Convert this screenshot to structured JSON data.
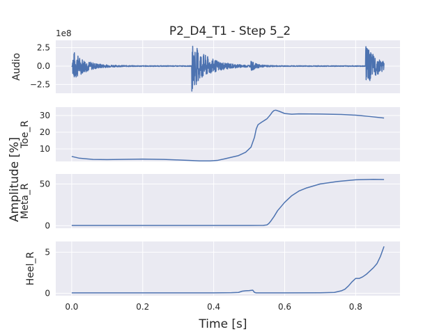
{
  "chart_data": {
    "type": "line",
    "title": "P2_D4_T1 - Step 5_2",
    "xlabel": "Time [s]",
    "ylabel": "Amplitude [%]",
    "xlim": [
      -0.045,
      0.925
    ],
    "x_ticks": [
      0.0,
      0.2,
      0.4,
      0.6,
      0.8
    ],
    "x_tick_labels": [
      "0.0",
      "0.2",
      "0.4",
      "0.6",
      "0.8"
    ],
    "grid": true,
    "color": "#4c72b0",
    "panels": [
      {
        "ylabel": "Audio",
        "offset_label": "1e8",
        "ylim": [
          -3.7,
          3.5
        ],
        "y_ticks": [
          2.5,
          0.0,
          -2.5
        ],
        "y_tick_labels": [
          "2.5",
          "0.0",
          "−2.5"
        ],
        "bursts": [
          {
            "t": 0.002,
            "peak": 1.3,
            "trough": -2.2,
            "decay": 0.035
          },
          {
            "t": 0.338,
            "peak": 3.2,
            "trough": -3.4,
            "decay": 0.045
          },
          {
            "t": 0.505,
            "peak": 0.6,
            "trough": -0.6,
            "decay": 0.015
          },
          {
            "t": 0.828,
            "peak": 1.7,
            "trough": -2.8,
            "decay": 0.035
          }
        ],
        "noise_level": 0.05,
        "x": [
          0.0,
          0.88
        ]
      },
      {
        "ylabel": "Toe_R",
        "ylim": [
          2.5,
          35
        ],
        "y_ticks": [
          10,
          20,
          30
        ],
        "y_tick_labels": [
          "10",
          "20",
          "30"
        ],
        "x": [
          0.0,
          0.02,
          0.06,
          0.1,
          0.2,
          0.26,
          0.3,
          0.33,
          0.36,
          0.39,
          0.41,
          0.43,
          0.45,
          0.47,
          0.49,
          0.505,
          0.515,
          0.52,
          0.525,
          0.535,
          0.55,
          0.56,
          0.565,
          0.57,
          0.575,
          0.585,
          0.6,
          0.62,
          0.64,
          0.7,
          0.76,
          0.8,
          0.84,
          0.88
        ],
        "y": [
          5.5,
          4.5,
          3.7,
          3.6,
          3.9,
          3.7,
          3.4,
          3.1,
          2.8,
          2.8,
          3.1,
          4.0,
          5.0,
          6.0,
          8.0,
          11.0,
          17.0,
          22.0,
          24.5,
          26.0,
          28.0,
          30.5,
          32.0,
          33.0,
          33.2,
          32.5,
          31.2,
          30.8,
          31.0,
          30.9,
          30.6,
          30.2,
          29.4,
          28.5
        ]
      },
      {
        "ylabel": "Meta_R",
        "ylim": [
          -3,
          62
        ],
        "y_ticks": [
          0,
          50
        ],
        "y_tick_labels": [
          "0",
          "50"
        ],
        "x": [
          0.0,
          0.1,
          0.2,
          0.3,
          0.4,
          0.5,
          0.54,
          0.55,
          0.555,
          0.56,
          0.57,
          0.58,
          0.6,
          0.62,
          0.64,
          0.66,
          0.7,
          0.75,
          0.8,
          0.85,
          0.88
        ],
        "y": [
          0.3,
          0.3,
          0.3,
          0.3,
          0.3,
          0.3,
          0.4,
          1.0,
          2.5,
          5.0,
          11.0,
          18.0,
          28.0,
          36.0,
          41.5,
          45.0,
          50.0,
          53.0,
          55.0,
          55.5,
          55.3
        ]
      },
      {
        "ylabel": "Heel_R",
        "ylim": [
          -0.3,
          6.3
        ],
        "y_ticks": [
          0,
          5
        ],
        "y_tick_labels": [
          "0",
          "5"
        ],
        "x": [
          0.0,
          0.1,
          0.2,
          0.3,
          0.4,
          0.45,
          0.47,
          0.48,
          0.49,
          0.5,
          0.51,
          0.515,
          0.52,
          0.53,
          0.6,
          0.7,
          0.74,
          0.76,
          0.77,
          0.78,
          0.79,
          0.8,
          0.81,
          0.82,
          0.83,
          0.84,
          0.85,
          0.86,
          0.87,
          0.88
        ],
        "y": [
          0.05,
          0.05,
          0.05,
          0.05,
          0.05,
          0.07,
          0.1,
          0.25,
          0.3,
          0.32,
          0.38,
          0.1,
          0.05,
          0.05,
          0.05,
          0.06,
          0.1,
          0.3,
          0.5,
          0.9,
          1.4,
          1.8,
          1.8,
          2.0,
          2.3,
          2.7,
          3.1,
          3.6,
          4.5,
          5.7
        ]
      }
    ]
  }
}
